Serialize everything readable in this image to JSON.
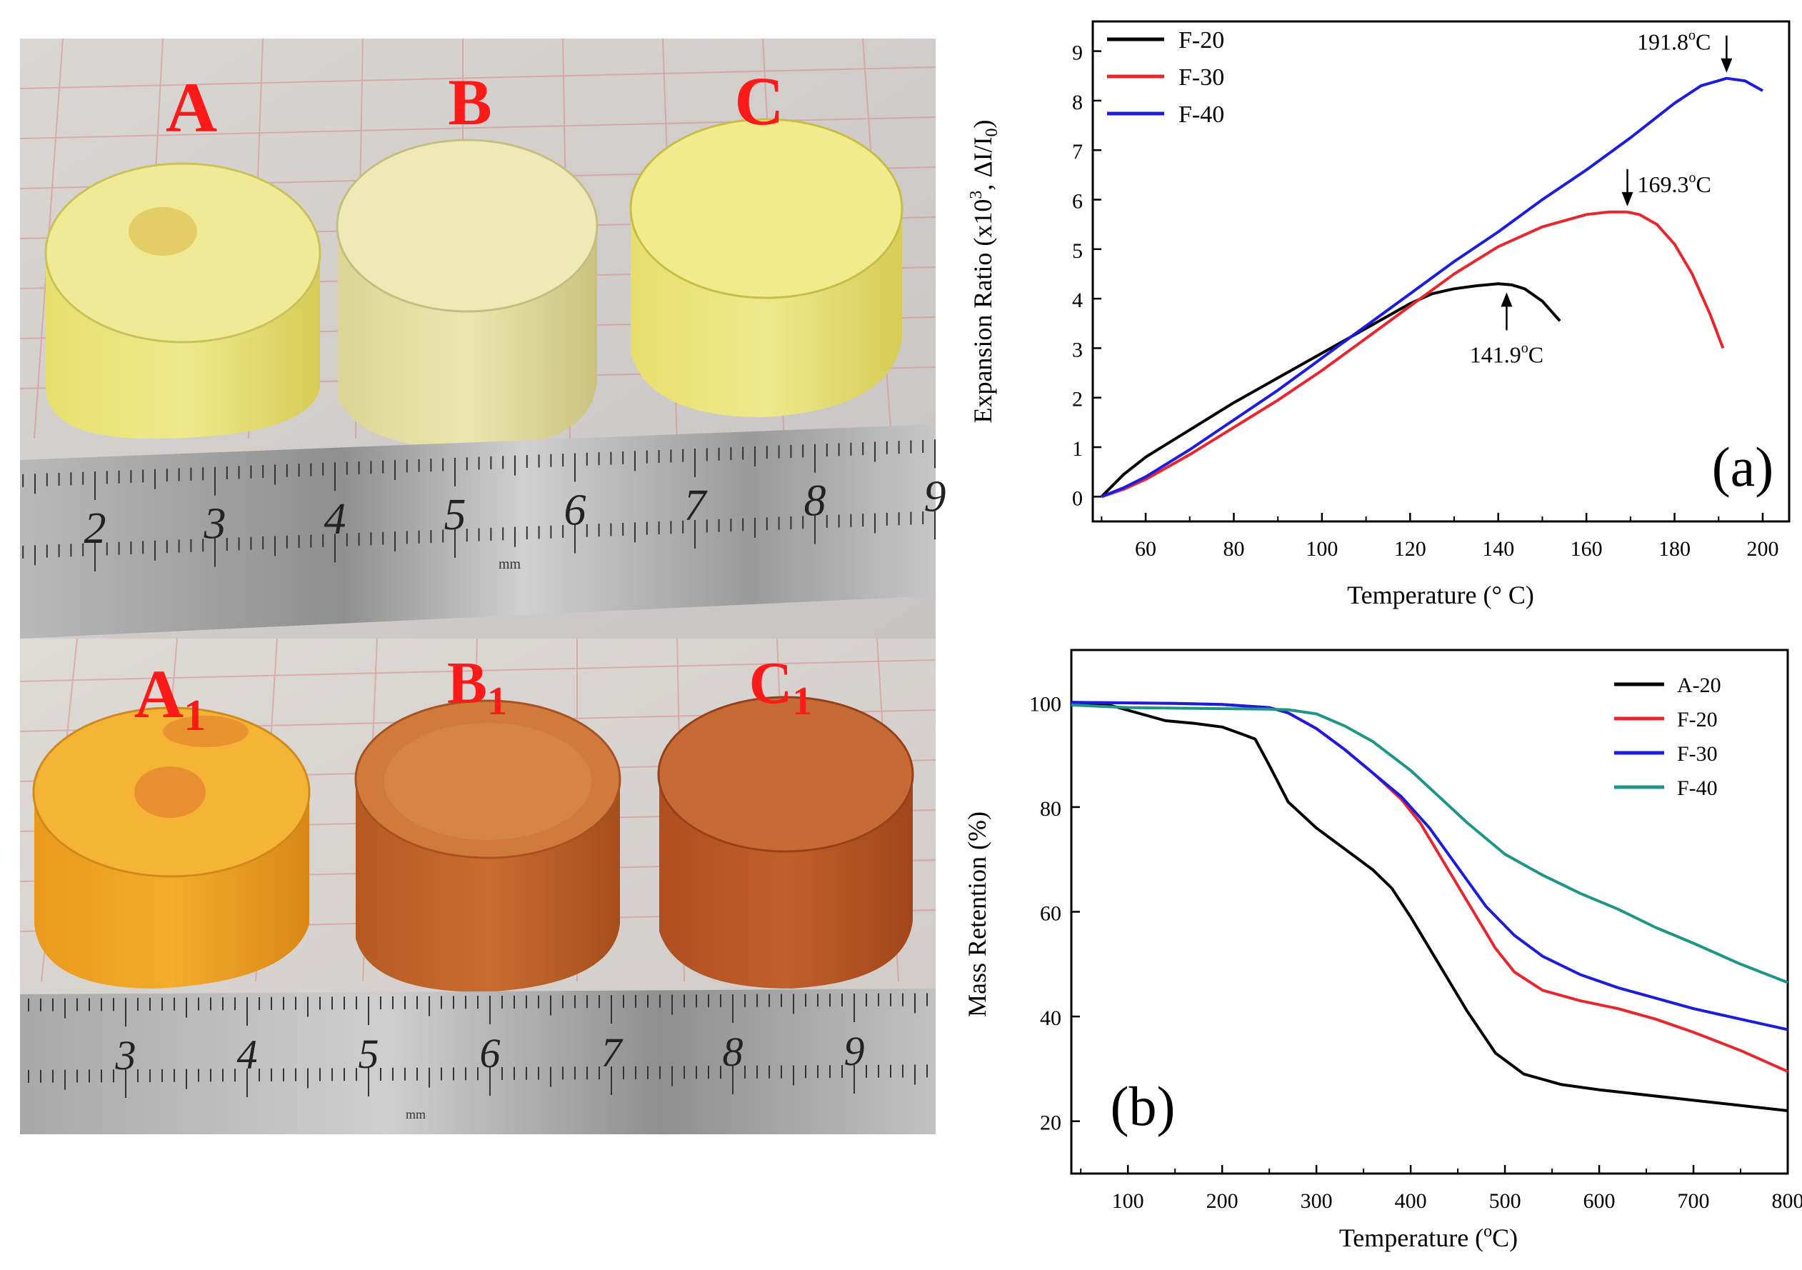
{
  "photos": {
    "top": {
      "labels": [
        "A",
        "B",
        "C"
      ],
      "ruler_numbers": [
        "2",
        "3",
        "4",
        "5",
        "6",
        "7",
        "8",
        "9"
      ],
      "ruler_unit": "mm",
      "colors": {
        "sample": "#e8e48a",
        "sample_side": "#dcd470",
        "label": "#ff1a1a"
      }
    },
    "bottom": {
      "labels": [
        {
          "main": "A",
          "sub": "1"
        },
        {
          "main": "B",
          "sub": "1"
        },
        {
          "main": "C",
          "sub": "1"
        }
      ],
      "ruler_numbers": [
        "3",
        "4",
        "5",
        "6",
        "7",
        "8",
        "9"
      ],
      "ruler_unit": "mm",
      "colors": {
        "sample_a": "#f0a824",
        "sample_b": "#c8682a",
        "sample_c": "#c05a28",
        "label": "#ff1a1a"
      }
    }
  },
  "chart_data": [
    {
      "type": "line",
      "panel_label": "(a)",
      "xlabel": "Temperature (° C)",
      "ylabel_parts": [
        "Expansion Ratio (x10",
        "3",
        ", ΔI/I",
        "0",
        ")"
      ],
      "xlim": [
        48,
        206
      ],
      "ylim": [
        -0.5,
        9.6
      ],
      "xticks": [
        60,
        80,
        100,
        120,
        140,
        160,
        180,
        200
      ],
      "yticks": [
        0,
        1,
        2,
        3,
        4,
        5,
        6,
        7,
        8,
        9
      ],
      "legend_position": "top-left",
      "series": [
        {
          "name": "F-20",
          "color": "#000000",
          "x": [
            50,
            55,
            60,
            70,
            80,
            90,
            100,
            110,
            120,
            125,
            130,
            135,
            140,
            143,
            146,
            150,
            154
          ],
          "y": [
            0,
            0.45,
            0.8,
            1.35,
            1.9,
            2.4,
            2.9,
            3.4,
            3.9,
            4.1,
            4.2,
            4.26,
            4.3,
            4.28,
            4.2,
            3.95,
            3.55
          ]
        },
        {
          "name": "F-30",
          "color": "#e8262e",
          "x": [
            50,
            55,
            60,
            70,
            80,
            90,
            100,
            110,
            120,
            130,
            140,
            150,
            160,
            165,
            169.3,
            172,
            176,
            180,
            184,
            188,
            191
          ],
          "y": [
            0,
            0.15,
            0.35,
            0.85,
            1.4,
            1.95,
            2.55,
            3.2,
            3.85,
            4.5,
            5.05,
            5.45,
            5.7,
            5.75,
            5.75,
            5.7,
            5.5,
            5.1,
            4.5,
            3.7,
            3.0
          ]
        },
        {
          "name": "F-40",
          "color": "#1c1ce0",
          "x": [
            50,
            55,
            60,
            70,
            80,
            90,
            100,
            110,
            120,
            130,
            140,
            150,
            160,
            170,
            180,
            186,
            191.8,
            196,
            200
          ],
          "y": [
            0,
            0.18,
            0.4,
            0.95,
            1.55,
            2.15,
            2.8,
            3.45,
            4.1,
            4.75,
            5.35,
            6.0,
            6.6,
            7.25,
            7.95,
            8.3,
            8.45,
            8.4,
            8.2
          ]
        }
      ],
      "annotations": [
        {
          "text_parts": [
            "141.9",
            "o",
            "C"
          ],
          "x": 141.9,
          "y": 4.3,
          "arrow": "up"
        },
        {
          "text_parts": [
            "169.3",
            "o",
            "C"
          ],
          "x": 169.3,
          "y": 5.75,
          "arrow": "down"
        },
        {
          "text_parts": [
            "191.8",
            "o",
            "C"
          ],
          "x": 191.8,
          "y": 8.45,
          "arrow": "down"
        }
      ]
    },
    {
      "type": "line",
      "panel_label": "(b)",
      "xlabel_parts": [
        "Temperature (",
        "o",
        "C)"
      ],
      "ylabel": "Mass Retention (%)",
      "xlim": [
        40,
        800
      ],
      "ylim": [
        10,
        110
      ],
      "xticks": [
        100,
        200,
        300,
        400,
        500,
        600,
        700,
        800
      ],
      "yticks": [
        20,
        40,
        60,
        80,
        100
      ],
      "legend_position": "top-right",
      "series": [
        {
          "name": "A-20",
          "color": "#000000",
          "x": [
            40,
            80,
            110,
            140,
            170,
            200,
            220,
            235,
            250,
            270,
            300,
            330,
            360,
            380,
            400,
            430,
            460,
            490,
            520,
            560,
            600,
            700,
            800
          ],
          "y": [
            100,
            99.5,
            98,
            96.5,
            96,
            95.3,
            94,
            93,
            88,
            81,
            76,
            72,
            68,
            64.5,
            59,
            50,
            41,
            33,
            29,
            27,
            26,
            24,
            22
          ]
        },
        {
          "name": "F-20",
          "color": "#e8262e",
          "x": [
            40,
            150,
            200,
            250,
            270,
            300,
            330,
            360,
            390,
            410,
            430,
            450,
            470,
            490,
            510,
            540,
            580,
            620,
            660,
            700,
            750,
            800
          ],
          "y": [
            100,
            99.8,
            99.6,
            99,
            98,
            95,
            91,
            86.5,
            81.5,
            77,
            71,
            65,
            59,
            53,
            48.5,
            45,
            43,
            41.5,
            39.5,
            37,
            33.5,
            29.5
          ]
        },
        {
          "name": "F-30",
          "color": "#1c1ce0",
          "x": [
            40,
            150,
            200,
            250,
            270,
            300,
            330,
            360,
            390,
            420,
            450,
            480,
            510,
            540,
            580,
            620,
            660,
            700,
            750,
            800
          ],
          "y": [
            100,
            99.8,
            99.6,
            99,
            98,
            95,
            91,
            86.5,
            82,
            76,
            68.5,
            61,
            55.5,
            51.5,
            48,
            45.5,
            43.5,
            41.5,
            39.5,
            37.5
          ]
        },
        {
          "name": "F-40",
          "color": "#1f958a",
          "x": [
            40,
            100,
            150,
            200,
            250,
            270,
            300,
            330,
            360,
            400,
            430,
            460,
            500,
            540,
            580,
            620,
            660,
            700,
            750,
            800
          ],
          "y": [
            99.5,
            99,
            98.9,
            98.8,
            98.7,
            98.6,
            97.8,
            95.5,
            92.5,
            87,
            82,
            77,
            71,
            67,
            63.5,
            60.5,
            57,
            54,
            50,
            46.5
          ]
        }
      ]
    }
  ]
}
